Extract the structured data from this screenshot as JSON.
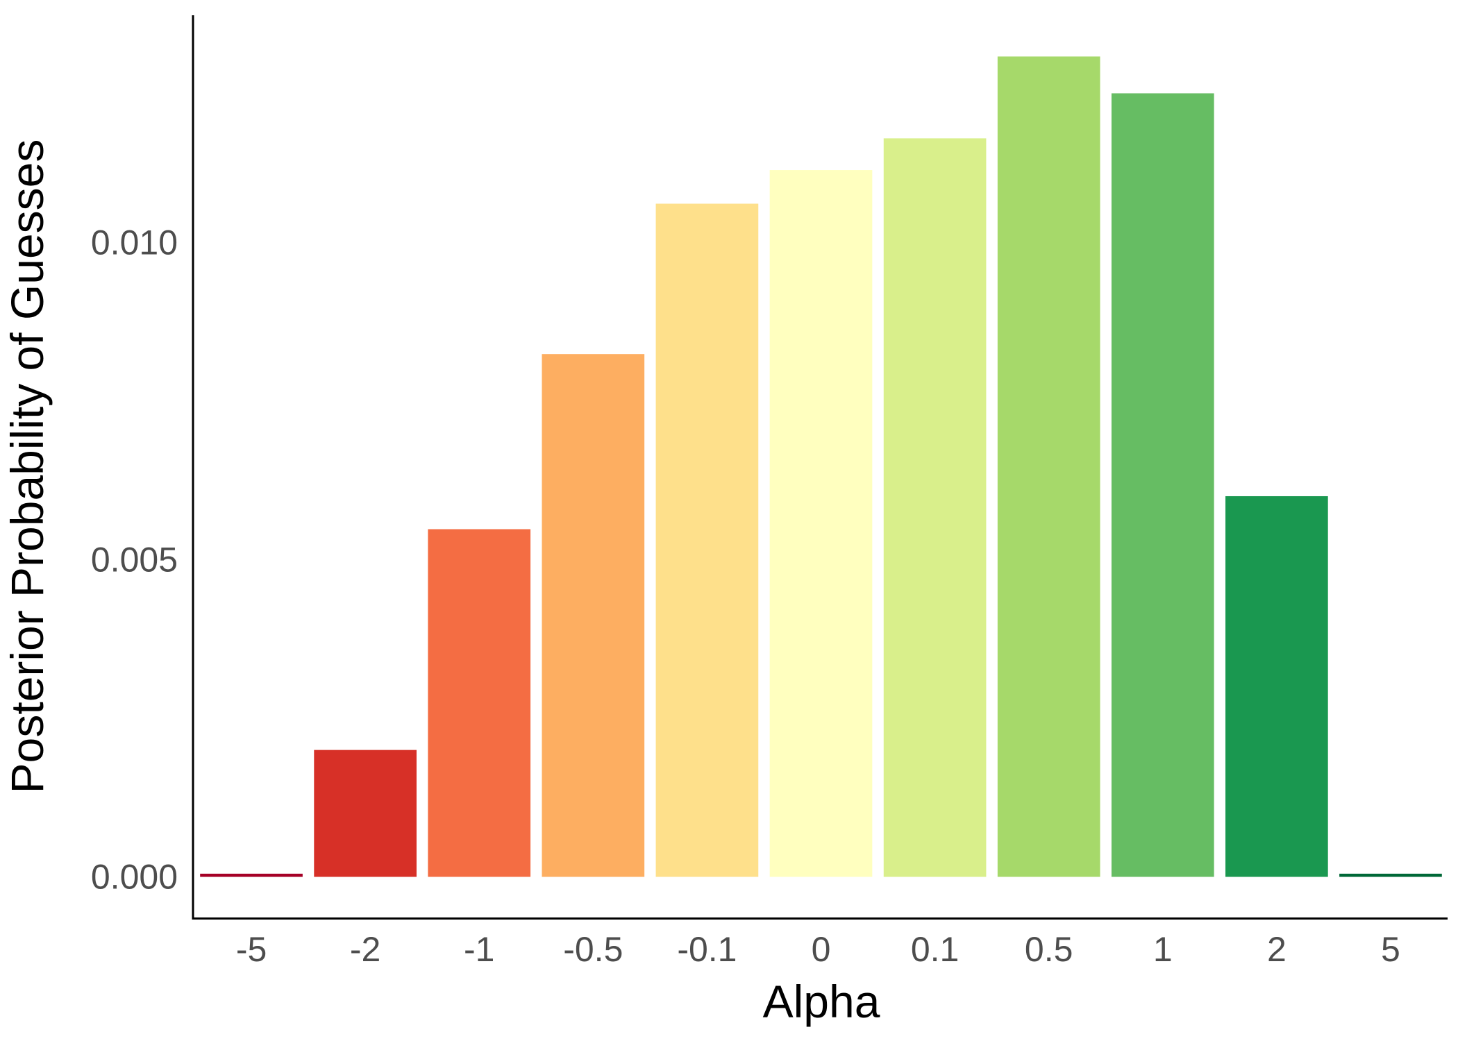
{
  "chart_data": {
    "type": "bar",
    "xlabel": "Alpha",
    "ylabel": "Posterior Probability of Guesses",
    "categories": [
      "-5",
      "-2",
      "-1",
      "-0.5",
      "-0.1",
      "0",
      "0.1",
      "0.5",
      "1",
      "2",
      "5"
    ],
    "values": [
      5e-05,
      0.002,
      0.00548,
      0.00824,
      0.01061,
      0.01114,
      0.01164,
      0.01293,
      0.01235,
      0.006,
      5e-05
    ],
    "colors": [
      "#a50026",
      "#d73027",
      "#f46d43",
      "#fdae61",
      "#fee08b",
      "#ffffbf",
      "#d9ef8b",
      "#a6d96a",
      "#66bd63",
      "#1a9850",
      "#006837"
    ],
    "y_ticks": [
      0,
      0.005,
      0.01
    ],
    "y_tick_labels": [
      "0.000",
      "0.005",
      "0.010"
    ],
    "ylim": [
      -0.00064,
      0.01358
    ],
    "grid": false,
    "legend": "none"
  }
}
